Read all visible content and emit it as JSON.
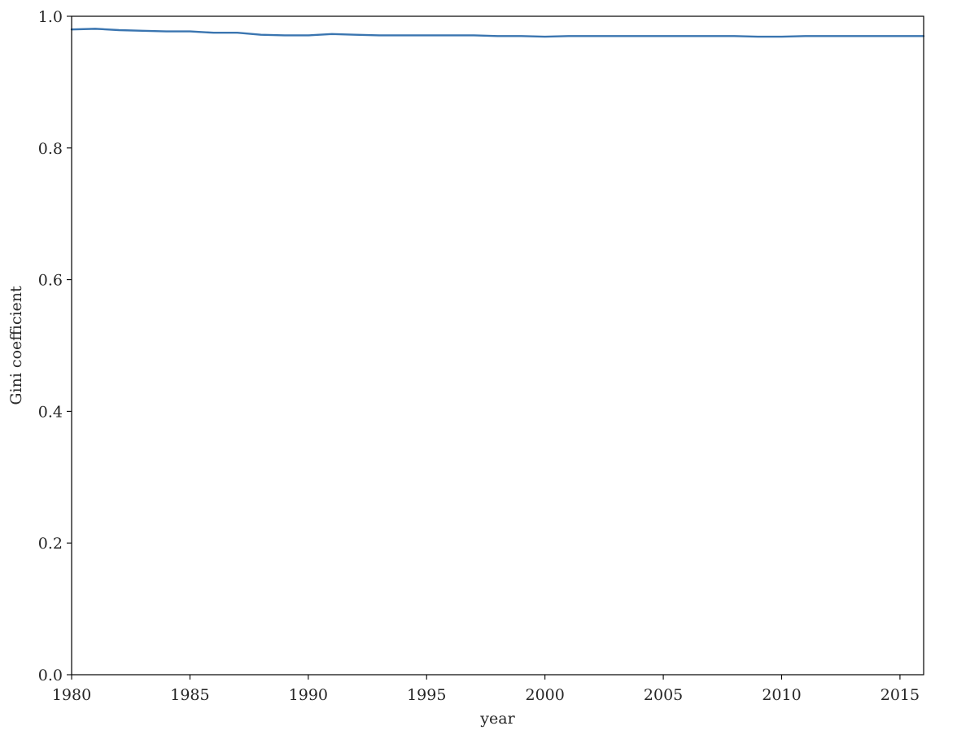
{
  "chart_data": {
    "type": "line",
    "title": "",
    "xlabel": "year",
    "ylabel": "Gini coefficient",
    "xlim": [
      1980,
      2016
    ],
    "ylim": [
      0.0,
      1.0
    ],
    "x_ticks": [
      1980,
      1985,
      1990,
      1995,
      2000,
      2005,
      2010,
      2015
    ],
    "x_tick_labels": [
      "1980",
      "1985",
      "1990",
      "1995",
      "2000",
      "2005",
      "2010",
      "2015"
    ],
    "y_ticks": [
      0.0,
      0.2,
      0.4,
      0.6,
      0.8,
      1.0
    ],
    "y_tick_labels": [
      "0.0",
      "0.2",
      "0.4",
      "0.6",
      "0.8",
      "1.0"
    ],
    "grid": false,
    "series": [
      {
        "color": "#3a75b0",
        "x": [
          1980,
          1981,
          1982,
          1983,
          1984,
          1985,
          1986,
          1987,
          1988,
          1989,
          1990,
          1991,
          1992,
          1993,
          1994,
          1995,
          1996,
          1997,
          1998,
          1999,
          2000,
          2001,
          2002,
          2003,
          2004,
          2005,
          2006,
          2007,
          2008,
          2009,
          2010,
          2011,
          2012,
          2013,
          2014,
          2015,
          2016
        ],
        "y": [
          0.98,
          0.981,
          0.979,
          0.978,
          0.977,
          0.977,
          0.975,
          0.975,
          0.972,
          0.971,
          0.971,
          0.973,
          0.972,
          0.971,
          0.971,
          0.971,
          0.971,
          0.971,
          0.97,
          0.97,
          0.969,
          0.97,
          0.97,
          0.97,
          0.97,
          0.97,
          0.97,
          0.97,
          0.97,
          0.969,
          0.969,
          0.97,
          0.97,
          0.97,
          0.97,
          0.97,
          0.97
        ]
      }
    ]
  }
}
